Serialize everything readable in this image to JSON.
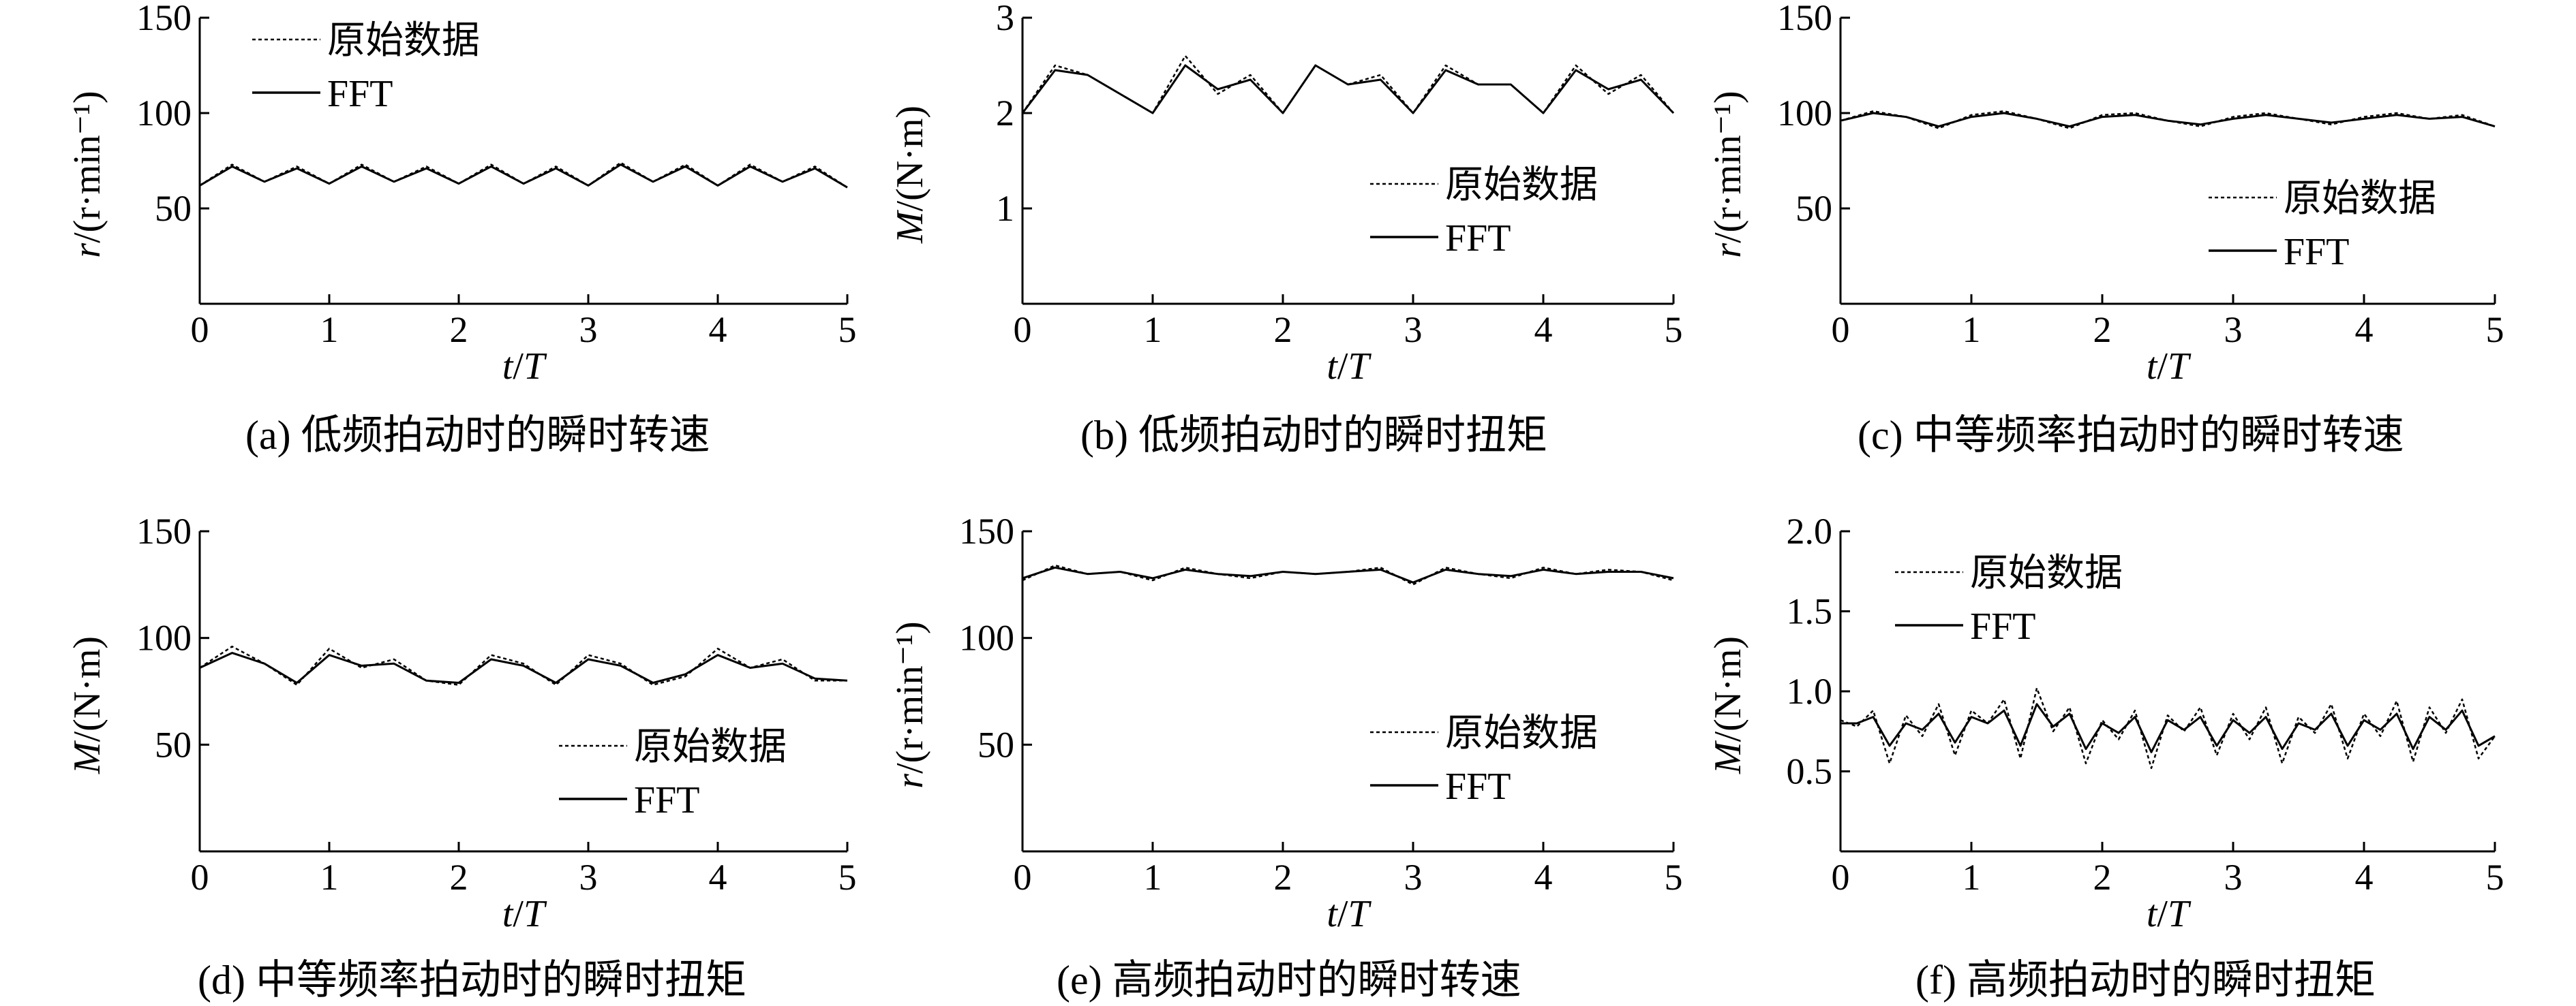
{
  "panels": [
    {
      "id": "a",
      "caption": "(a) 低频拍动时的瞬时转速",
      "chart_data": {
        "type": "line",
        "xlabel": "t/T",
        "ylabel": "r/(r·min⁻¹)",
        "xlim": [
          0,
          5
        ],
        "ylim": [
          0,
          150
        ],
        "xticks": [
          0,
          1,
          2,
          3,
          4,
          5
        ],
        "yticks": [
          50,
          100,
          150
        ],
        "legend_position": "top-left",
        "series": [
          {
            "name": "原始数据",
            "style": "dotted",
            "x": [
              0,
              0.25,
              0.5,
              0.75,
              1.0,
              1.25,
              1.5,
              1.75,
              2.0,
              2.25,
              2.5,
              2.75,
              3.0,
              3.25,
              3.5,
              3.75,
              4.0,
              4.25,
              4.5,
              4.75,
              5.0
            ],
            "y": [
              62,
              73,
              64,
              72,
              63,
              73,
              64,
              72,
              63,
              73,
              63,
              72,
              62,
              74,
              64,
              73,
              62,
              73,
              64,
              72,
              61
            ]
          },
          {
            "name": "FFT",
            "style": "solid",
            "x": [
              0,
              0.25,
              0.5,
              0.75,
              1.0,
              1.25,
              1.5,
              1.75,
              2.0,
              2.25,
              2.5,
              2.75,
              3.0,
              3.25,
              3.5,
              3.75,
              4.0,
              4.25,
              4.5,
              4.75,
              5.0
            ],
            "y": [
              62,
              72,
              64,
              71,
              63,
              72,
              64,
              71,
              63,
              72,
              63,
              71,
              62,
              73,
              64,
              72,
              62,
              72,
              64,
              71,
              61
            ]
          }
        ]
      }
    },
    {
      "id": "b",
      "caption": "(b) 低频拍动时的瞬时扭矩",
      "chart_data": {
        "type": "line",
        "xlabel": "t/T",
        "ylabel": "M/(N·m)",
        "xlim": [
          0,
          5
        ],
        "ylim": [
          0,
          3
        ],
        "xticks": [
          0,
          1,
          2,
          3,
          4,
          5
        ],
        "yticks": [
          1,
          2,
          3
        ],
        "legend_position": "middle-right",
        "series": [
          {
            "name": "原始数据",
            "style": "dotted",
            "x": [
              0,
              0.25,
              0.5,
              0.75,
              1.0,
              1.25,
              1.5,
              1.75,
              2.0,
              2.25,
              2.5,
              2.75,
              3.0,
              3.25,
              3.5,
              3.75,
              4.0,
              4.25,
              4.5,
              4.75,
              5.0
            ],
            "y": [
              2.0,
              2.5,
              2.4,
              2.2,
              2.0,
              2.6,
              2.2,
              2.4,
              2.0,
              2.5,
              2.3,
              2.4,
              2.0,
              2.5,
              2.3,
              2.3,
              2.0,
              2.5,
              2.2,
              2.4,
              2.0
            ]
          },
          {
            "name": "FFT",
            "style": "solid",
            "x": [
              0,
              0.25,
              0.5,
              0.75,
              1.0,
              1.25,
              1.5,
              1.75,
              2.0,
              2.25,
              2.5,
              2.75,
              3.0,
              3.25,
              3.5,
              3.75,
              4.0,
              4.25,
              4.5,
              4.75,
              5.0
            ],
            "y": [
              2.0,
              2.45,
              2.4,
              2.2,
              2.0,
              2.5,
              2.25,
              2.35,
              2.0,
              2.5,
              2.3,
              2.35,
              2.0,
              2.45,
              2.3,
              2.3,
              2.0,
              2.45,
              2.25,
              2.35,
              2.0
            ]
          }
        ]
      }
    },
    {
      "id": "c",
      "caption": "(c) 中等频率拍动时的瞬时转速",
      "chart_data": {
        "type": "line",
        "xlabel": "t/T",
        "ylabel": "r/(r·min⁻¹)",
        "xlim": [
          0,
          5
        ],
        "ylim": [
          0,
          150
        ],
        "xticks": [
          0,
          1,
          2,
          3,
          4,
          5
        ],
        "yticks": [
          50,
          100,
          150
        ],
        "legend_position": "middle-right",
        "series": [
          {
            "name": "原始数据",
            "style": "dotted",
            "x": [
              0,
              0.25,
              0.5,
              0.75,
              1.0,
              1.25,
              1.5,
              1.75,
              2.0,
              2.25,
              2.5,
              2.75,
              3.0,
              3.25,
              3.5,
              3.75,
              4.0,
              4.25,
              4.5,
              4.75,
              5.0
            ],
            "y": [
              96,
              101,
              98,
              92,
              99,
              101,
              97,
              92,
              99,
              100,
              96,
              93,
              98,
              100,
              97,
              94,
              98,
              100,
              97,
              99,
              93
            ]
          },
          {
            "name": "FFT",
            "style": "solid",
            "x": [
              0,
              0.25,
              0.5,
              0.75,
              1.0,
              1.25,
              1.5,
              1.75,
              2.0,
              2.25,
              2.5,
              2.75,
              3.0,
              3.25,
              3.5,
              3.75,
              4.0,
              4.25,
              4.5,
              4.75,
              5.0
            ],
            "y": [
              96,
              100,
              98,
              93,
              98,
              100,
              97,
              93,
              98,
              99,
              96,
              94,
              97,
              99,
              97,
              95,
              97,
              99,
              97,
              98,
              93
            ]
          }
        ]
      }
    },
    {
      "id": "d",
      "caption": "(d) 中等频率拍动时的瞬时扭矩",
      "chart_data": {
        "type": "line",
        "xlabel": "t/T",
        "ylabel": "M/(N·m)",
        "xlim": [
          0,
          5
        ],
        "ylim": [
          0,
          150
        ],
        "xticks": [
          0,
          1,
          2,
          3,
          4,
          5
        ],
        "yticks": [
          50,
          100,
          150
        ],
        "legend_position": "bottom-right",
        "series": [
          {
            "name": "原始数据",
            "style": "dotted",
            "x": [
              0,
              0.25,
              0.5,
              0.75,
              1.0,
              1.25,
              1.5,
              1.75,
              2.0,
              2.25,
              2.5,
              2.75,
              3.0,
              3.25,
              3.5,
              3.75,
              4.0,
              4.25,
              4.5,
              4.75,
              5.0
            ],
            "y": [
              86,
              96,
              88,
              78,
              95,
              86,
              90,
              80,
              78,
              92,
              88,
              78,
              92,
              88,
              78,
              82,
              95,
              86,
              90,
              80,
              80
            ]
          },
          {
            "name": "FFT",
            "style": "solid",
            "x": [
              0,
              0.25,
              0.5,
              0.75,
              1.0,
              1.25,
              1.5,
              1.75,
              2.0,
              2.25,
              2.5,
              2.75,
              3.0,
              3.25,
              3.5,
              3.75,
              4.0,
              4.25,
              4.5,
              4.75,
              5.0
            ],
            "y": [
              86,
              93,
              88,
              79,
              92,
              87,
              88,
              80,
              79,
              90,
              87,
              79,
              90,
              87,
              79,
              83,
              92,
              86,
              88,
              81,
              80
            ]
          }
        ]
      }
    },
    {
      "id": "e",
      "caption": "(e) 高频拍动时的瞬时转速",
      "chart_data": {
        "type": "line",
        "xlabel": "t/T",
        "ylabel": "r/(r·min⁻¹)",
        "xlim": [
          0,
          5
        ],
        "ylim": [
          0,
          150
        ],
        "xticks": [
          0,
          1,
          2,
          3,
          4,
          5
        ],
        "yticks": [
          50,
          100,
          150
        ],
        "legend_position": "bottom-right",
        "series": [
          {
            "name": "原始数据",
            "style": "dotted",
            "x": [
              0,
              0.25,
              0.5,
              0.75,
              1.0,
              1.25,
              1.5,
              1.75,
              2.0,
              2.25,
              2.5,
              2.75,
              3.0,
              3.25,
              3.5,
              3.75,
              4.0,
              4.25,
              4.5,
              4.75,
              5.0
            ],
            "y": [
              127,
              134,
              130,
              131,
              127,
              133,
              130,
              128,
              131,
              130,
              131,
              133,
              125,
              133,
              130,
              128,
              133,
              130,
              132,
              131,
              127
            ]
          },
          {
            "name": "FFT",
            "style": "solid",
            "x": [
              0,
              0.25,
              0.5,
              0.75,
              1.0,
              1.25,
              1.5,
              1.75,
              2.0,
              2.25,
              2.5,
              2.75,
              3.0,
              3.25,
              3.5,
              3.75,
              4.0,
              4.25,
              4.5,
              4.75,
              5.0
            ],
            "y": [
              128,
              133,
              130,
              131,
              128,
              132,
              130,
              129,
              131,
              130,
              131,
              132,
              126,
              132,
              130,
              129,
              132,
              130,
              131,
              131,
              128
            ]
          }
        ]
      }
    },
    {
      "id": "f",
      "caption": "(f) 高频拍动时的瞬时扭矩",
      "chart_data": {
        "type": "line",
        "xlabel": "t/T",
        "ylabel": "M/(N·m)",
        "xlim": [
          0,
          5
        ],
        "ylim": [
          0,
          2.0
        ],
        "xticks": [
          0,
          1,
          2,
          3,
          4,
          5
        ],
        "yticks": [
          0.5,
          1.0,
          1.5,
          2.0
        ],
        "ytick_labels": [
          "0.5",
          "1.0",
          "1.5",
          "2.0"
        ],
        "legend_position": "top-left",
        "series": [
          {
            "name": "原始数据",
            "style": "dotted",
            "x": [
              0,
              0.125,
              0.25,
              0.375,
              0.5,
              0.625,
              0.75,
              0.875,
              1.0,
              1.125,
              1.25,
              1.375,
              1.5,
              1.625,
              1.75,
              1.875,
              2.0,
              2.125,
              2.25,
              2.375,
              2.5,
              2.625,
              2.75,
              2.875,
              3.0,
              3.125,
              3.25,
              3.375,
              3.5,
              3.625,
              3.75,
              3.875,
              4.0,
              4.125,
              4.25,
              4.375,
              4.5,
              4.625,
              4.75,
              4.875,
              5.0
            ],
            "y": [
              0.82,
              0.78,
              0.88,
              0.55,
              0.85,
              0.72,
              0.92,
              0.6,
              0.88,
              0.8,
              0.95,
              0.58,
              1.02,
              0.75,
              0.9,
              0.55,
              0.82,
              0.7,
              0.88,
              0.52,
              0.85,
              0.75,
              0.9,
              0.6,
              0.86,
              0.7,
              0.9,
              0.55,
              0.84,
              0.74,
              0.92,
              0.58,
              0.86,
              0.72,
              0.94,
              0.56,
              0.9,
              0.74,
              0.95,
              0.58,
              0.72
            ]
          },
          {
            "name": "FFT",
            "style": "solid",
            "x": [
              0,
              0.125,
              0.25,
              0.375,
              0.5,
              0.625,
              0.75,
              0.875,
              1.0,
              1.125,
              1.25,
              1.375,
              1.5,
              1.625,
              1.75,
              1.875,
              2.0,
              2.125,
              2.25,
              2.375,
              2.5,
              2.625,
              2.75,
              2.875,
              3.0,
              3.125,
              3.25,
              3.375,
              3.5,
              3.625,
              3.75,
              3.875,
              4.0,
              4.125,
              4.25,
              4.375,
              4.5,
              4.625,
              4.75,
              4.875,
              5.0
            ],
            "y": [
              0.8,
              0.8,
              0.84,
              0.66,
              0.8,
              0.76,
              0.86,
              0.68,
              0.84,
              0.8,
              0.88,
              0.66,
              0.92,
              0.78,
              0.86,
              0.64,
              0.8,
              0.74,
              0.84,
              0.62,
              0.82,
              0.76,
              0.84,
              0.66,
              0.82,
              0.74,
              0.84,
              0.64,
              0.8,
              0.76,
              0.86,
              0.66,
              0.82,
              0.76,
              0.86,
              0.64,
              0.84,
              0.76,
              0.88,
              0.66,
              0.72
            ]
          }
        ]
      }
    }
  ]
}
